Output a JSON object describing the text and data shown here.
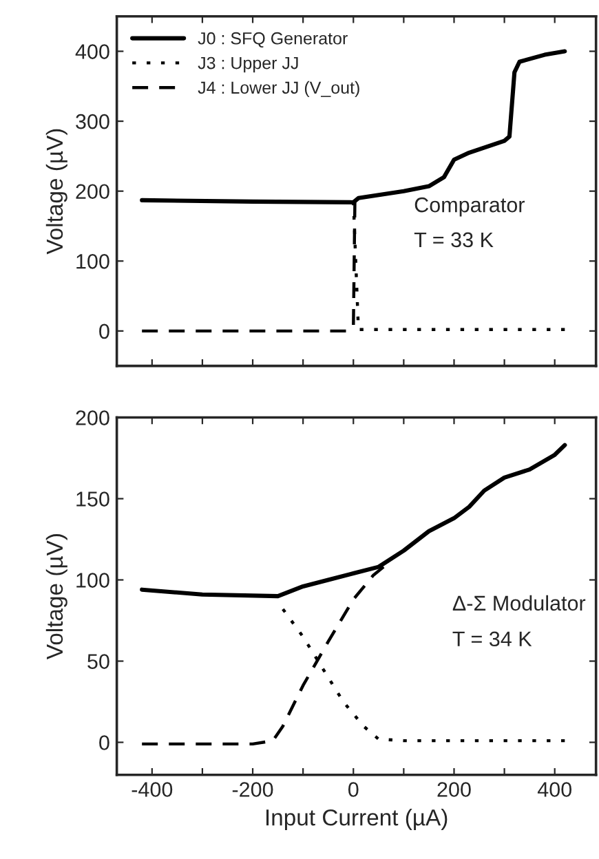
{
  "chart_data": [
    {
      "type": "line",
      "ylabel": "Voltage (µV)",
      "xlim": [
        -470,
        482
      ],
      "ylim": [
        -50,
        450
      ],
      "xticks": [
        -400,
        {
          "value": -300,
          "label": null
        },
        -200,
        {
          "value": -100,
          "label": null
        },
        0,
        {
          "value": 100,
          "label": null
        },
        200,
        {
          "value": 300,
          "label": null
        },
        400
      ],
      "yticks": [
        0,
        100,
        200,
        300,
        400
      ],
      "tick_labels": "y",
      "legend": "top left",
      "grid": false,
      "series": [
        {
          "name": "J0 : SFQ Generator",
          "color": "#000000",
          "line_style": "solid",
          "x": [
            -420,
            -200,
            0,
            10,
            100,
            150,
            180,
            200,
            230,
            300,
            310,
            320,
            330,
            380,
            420
          ],
          "values": [
            187,
            185,
            184,
            190,
            200,
            207,
            220,
            245,
            255,
            272,
            278,
            370,
            385,
            395,
            400
          ]
        },
        {
          "name": "J3 : Upper JJ",
          "color": "#000000",
          "line_style": "dotted",
          "x": [
            0,
            10,
            420
          ],
          "values": [
            185,
            2,
            2
          ]
        },
        {
          "name": "J4 : Lower JJ (V_out)",
          "color": "#000000",
          "line_style": "dashed",
          "x": [
            -420,
            -10,
            0,
            3
          ],
          "values": [
            0,
            0,
            5,
            185
          ]
        }
      ],
      "annotations": [
        "Comparator",
        "T = 33 K"
      ]
    },
    {
      "type": "line",
      "xlabel": "Input Current (µA)",
      "ylabel": "Voltage (µV)",
      "xlim": [
        -470,
        482
      ],
      "ylim": [
        -20,
        200
      ],
      "xticks": [
        -400,
        {
          "value": -300,
          "label": null
        },
        -200,
        {
          "value": -100,
          "label": null
        },
        0,
        {
          "value": 100,
          "label": null
        },
        200,
        {
          "value": 300,
          "label": null
        },
        400
      ],
      "yticks": [
        0,
        50,
        100,
        150,
        200
      ],
      "grid": false,
      "series": [
        {
          "color": "#000000",
          "line_style": "solid",
          "x": [
            -420,
            -300,
            -150,
            -100,
            -50,
            0,
            50,
            100,
            150,
            200,
            230,
            260,
            300,
            350,
            400,
            420
          ],
          "values": [
            94,
            91,
            90,
            96,
            100,
            104,
            108,
            118,
            130,
            138,
            145,
            155,
            163,
            168,
            177,
            183
          ]
        },
        {
          "color": "#000000",
          "line_style": "dotted",
          "x": [
            -140,
            -100,
            -60,
            -20,
            20,
            50,
            100,
            420
          ],
          "values": [
            82,
            65,
            45,
            25,
            10,
            2,
            1,
            1
          ]
        },
        {
          "color": "#000000",
          "line_style": "dashed",
          "x": [
            -420,
            -200,
            -160,
            -140,
            -100,
            -50,
            0,
            40,
            60
          ],
          "values": [
            -1,
            -1,
            1,
            10,
            35,
            62,
            88,
            103,
            108
          ]
        }
      ],
      "annotations": [
        "Δ-Σ Modulator",
        "T = 34 K"
      ]
    }
  ]
}
